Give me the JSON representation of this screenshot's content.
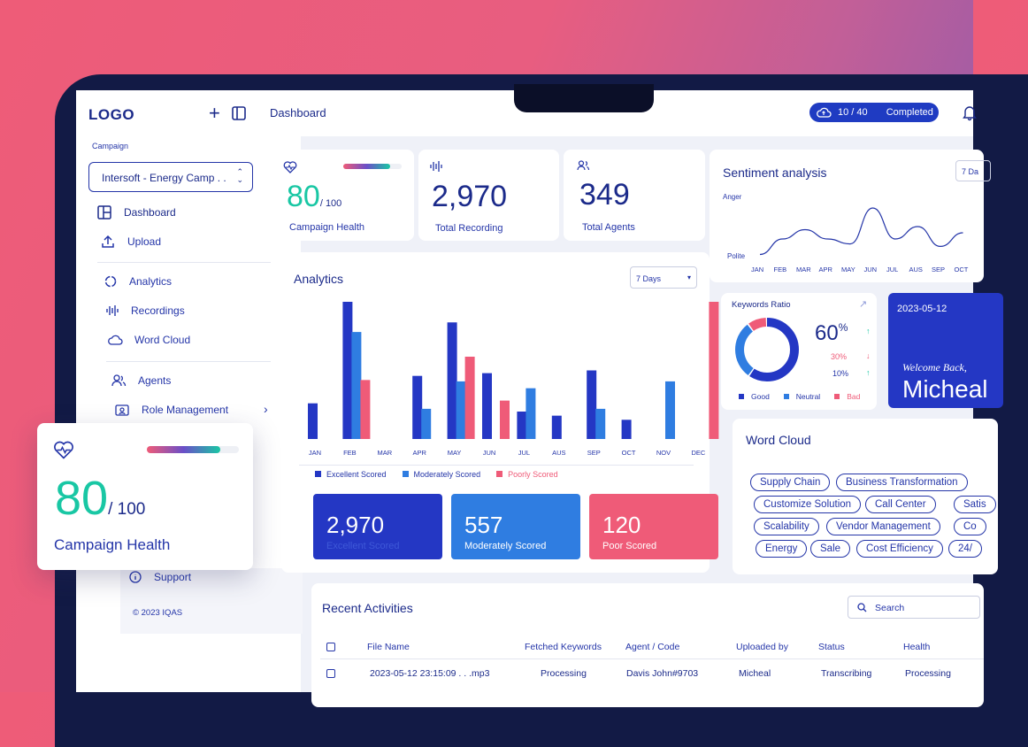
{
  "sidebar": {
    "logo": "LOGO",
    "campaign_label": "Campaign",
    "campaign_value": "Intersoft - Energy Camp . .",
    "items": [
      {
        "label": "Dashboard"
      },
      {
        "label": "Upload"
      },
      {
        "label": "Analytics"
      },
      {
        "label": "Recordings"
      },
      {
        "label": "Word Cloud"
      },
      {
        "label": "Agents"
      },
      {
        "label": "Role Management"
      },
      {
        "label": "Support"
      }
    ],
    "copyright": "© 2023 IQAS"
  },
  "header": {
    "title": "Dashboard",
    "upload_progress": "10 / 40",
    "upload_status": "Completed"
  },
  "stats": {
    "health_value": "80",
    "health_max": "/ 100",
    "health_label": "Campaign Health",
    "health_progress": 0.8,
    "recordings_value": "2,970",
    "recordings_label": "Total Recording",
    "agents_value": "349",
    "agents_label": "Total Agents"
  },
  "sentiment": {
    "title": "Sentiment analysis",
    "range": "7 Da",
    "y_top": "Anger",
    "y_bottom": "Polite",
    "months": [
      "JAN",
      "FEB",
      "MAR",
      "APR",
      "MAY",
      "JUN",
      "JUL",
      "AUS",
      "SEP",
      "OCT"
    ]
  },
  "analytics": {
    "title": "Analytics",
    "range": "7 Days",
    "legend": [
      "Excellent Scored",
      "Moderately Scored",
      "Poorly Scored"
    ],
    "totals": [
      {
        "value": "2,970",
        "label": "Excellent Scored"
      },
      {
        "value": "557",
        "label": "Moderately Scored"
      },
      {
        "value": "120",
        "label": "Poor Scored"
      }
    ]
  },
  "keywords": {
    "title": "Keywords Ratio",
    "main": "60",
    "main_unit": "%",
    "rows": [
      "30%",
      "10%"
    ],
    "legend": [
      "Good",
      "Neutral",
      "Bad"
    ],
    "ratios": {
      "good": 60,
      "neutral": 30,
      "bad": 10
    }
  },
  "welcome": {
    "date": "2023-05-12",
    "greeting": "Welcome Back,",
    "name": "Micheal"
  },
  "word_cloud": {
    "title": "Word Cloud",
    "words": [
      "Supply Chain",
      "Business Transformation",
      "Customize Solution",
      "Call Center",
      "Satis",
      "Scalability",
      "Vendor Management",
      "Co",
      "Energy",
      "Sale",
      "Cost Efficiency",
      "24/"
    ]
  },
  "activities": {
    "title": "Recent Activities",
    "search_placeholder": "Search",
    "columns": [
      "File Name",
      "Fetched Keywords",
      "Agent / Code",
      "Uploaded by",
      "Status",
      "Health"
    ],
    "rows": [
      {
        "file": "2023-05-12 23:15:09  . . .mp3",
        "keywords": "Processing",
        "agent": "Davis John#9703",
        "uploader": "Micheal",
        "status": "Transcribing",
        "health": "Processing"
      }
    ]
  },
  "popup": {
    "value": "80",
    "max": "/ 100",
    "label": "Campaign Health"
  },
  "chart_data": {
    "type": "bar",
    "categories": [
      "JAN",
      "FEB",
      "MAR",
      "APR",
      "MAY",
      "JUN",
      "JUL",
      "AUS",
      "SEP",
      "OCT",
      "NOV",
      "DEC"
    ],
    "series": [
      {
        "name": "Excellent Scored",
        "color": "#2437c4",
        "values": [
          26,
          100,
          0,
          46,
          85,
          48,
          20,
          17,
          50,
          14,
          0,
          0
        ]
      },
      {
        "name": "Moderately Scored",
        "color": "#2f7de1",
        "values": [
          0,
          78,
          0,
          22,
          42,
          0,
          37,
          0,
          22,
          0,
          42,
          0
        ]
      },
      {
        "name": "Poorly Scored",
        "color": "#ef5b78",
        "values": [
          0,
          43,
          0,
          0,
          60,
          28,
          0,
          0,
          0,
          0,
          0,
          100
        ]
      }
    ],
    "ylim": [
      0,
      100
    ],
    "xlabel": "",
    "ylabel": ""
  },
  "sentiment_chart": {
    "type": "line",
    "categories": [
      "JAN",
      "FEB",
      "MAR",
      "APR",
      "MAY",
      "JUN",
      "JUL",
      "AUS",
      "SEP",
      "OCT"
    ],
    "values": [
      5,
      30,
      45,
      30,
      22,
      80,
      30,
      50,
      18,
      40
    ],
    "ylim": [
      0,
      100
    ]
  }
}
